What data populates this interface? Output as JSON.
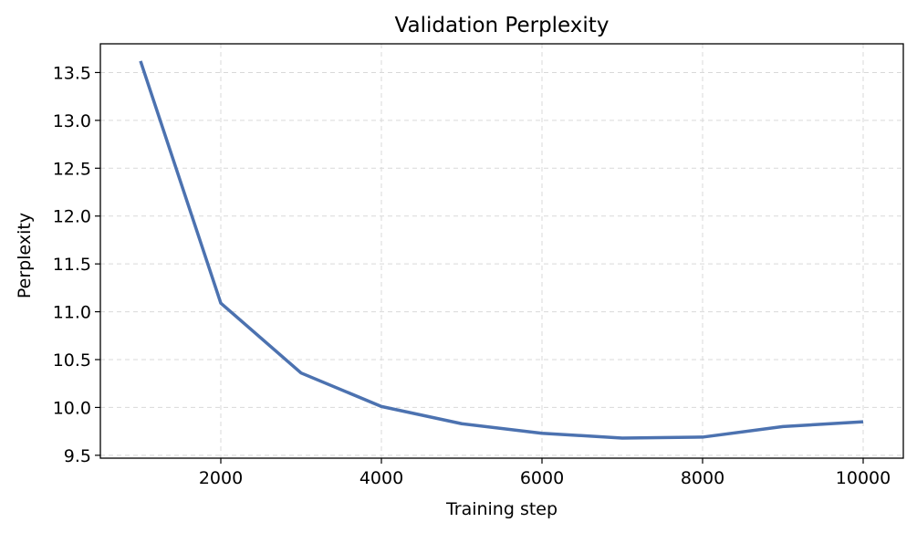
{
  "chart_data": {
    "type": "line",
    "title": "Validation Perplexity",
    "xlabel": "Training step",
    "ylabel": "Perplexity",
    "xlim": [
      500,
      10500
    ],
    "ylim": [
      9.47,
      13.8
    ],
    "xticks": [
      2000,
      4000,
      6000,
      8000,
      10000
    ],
    "yticks": [
      9.5,
      10.0,
      10.5,
      11.0,
      11.5,
      12.0,
      12.5,
      13.0,
      13.5
    ],
    "grid": true,
    "series": [
      {
        "color": "#4c72b0",
        "x": [
          1000,
          2000,
          3000,
          4000,
          5000,
          6000,
          7000,
          8000,
          9000,
          10000
        ],
        "y": [
          13.62,
          11.09,
          10.36,
          10.01,
          9.83,
          9.73,
          9.68,
          9.69,
          9.8,
          9.85
        ]
      }
    ]
  }
}
